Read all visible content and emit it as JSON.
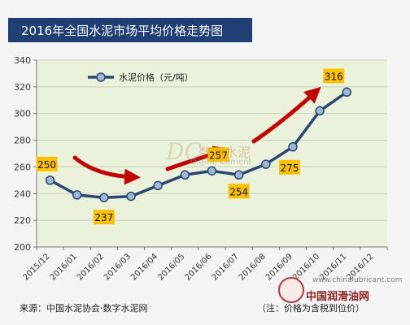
{
  "title": "2016年全国水泥市场平均价格走势图",
  "source_note": "来源：中国水泥协会·数字水泥网",
  "price_note": "（注：价格为含税到位价）",
  "watermark": {
    "logo": "DC",
    "name": "数字水泥",
    "english": "Digital-Cement"
  },
  "site_logo": {
    "url": "www.chinalubricant.com",
    "name": "中国润滑油网"
  },
  "colors": {
    "line": "#2c4674",
    "marker_fill": "#9fb7d6",
    "plot_bg": "#ebf2dc",
    "label_bg": "#ffc000",
    "arrow": "#c00000",
    "title_bg": "#1f3f75"
  },
  "chart_data": {
    "type": "line",
    "categories": [
      "2015/12",
      "2016/01",
      "2016/02",
      "2016/03",
      "2016/04",
      "2016/05",
      "2016/06",
      "2016/07",
      "2016/08",
      "2016/09",
      "2016/10",
      "2016/11",
      "2016/12"
    ],
    "series": [
      {
        "name": "水泥价格（元/吨）",
        "values": [
          250,
          239,
          237,
          238,
          246,
          254,
          257,
          254,
          262,
          275,
          302,
          316,
          null
        ]
      }
    ],
    "data_labels": [
      {
        "index": 0,
        "text": "250"
      },
      {
        "index": 2,
        "text": "237"
      },
      {
        "index": 6,
        "text": "257"
      },
      {
        "index": 7,
        "text": "254"
      },
      {
        "index": 9,
        "text": "275"
      },
      {
        "index": 11,
        "text": "316"
      }
    ],
    "y_ticks": [
      "200",
      "220",
      "240",
      "260",
      "280",
      "300",
      "320",
      "340"
    ],
    "ylim": [
      200,
      340
    ],
    "grid": true,
    "legend_position": "top-left",
    "trend_arrows": [
      "down",
      "up",
      "up"
    ]
  }
}
